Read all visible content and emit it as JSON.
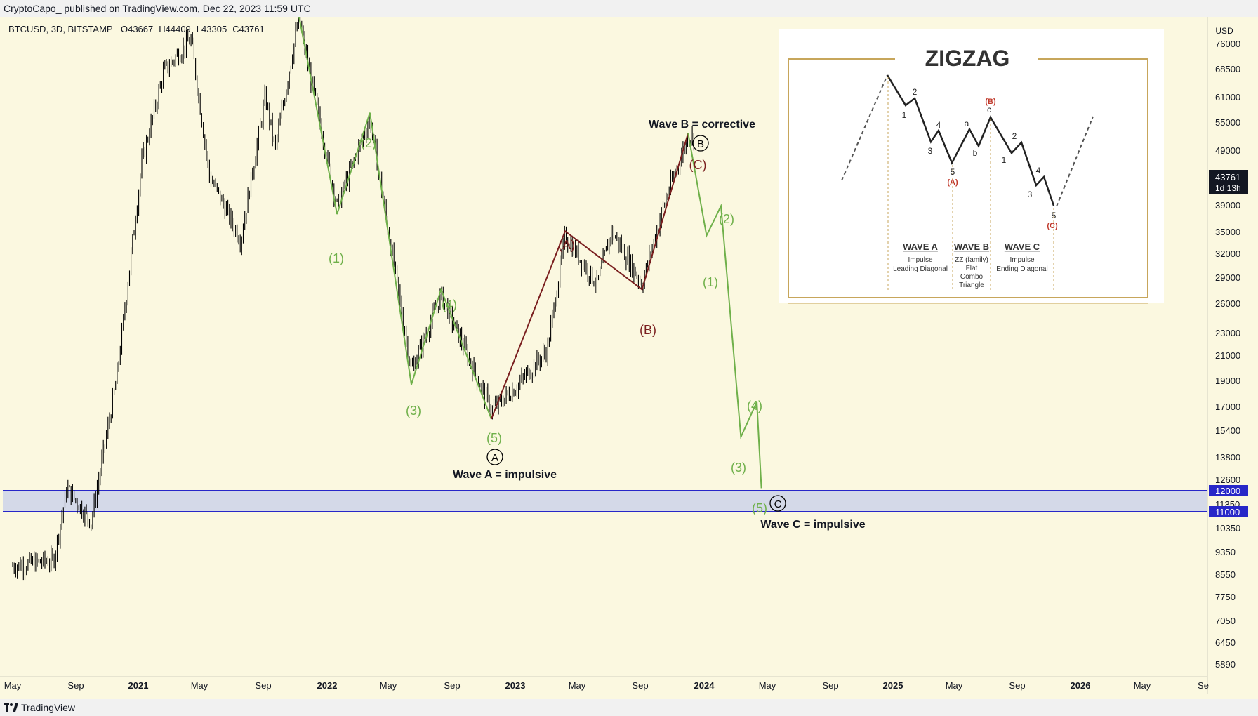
{
  "header": {
    "published_by": "CryptoCapo_ published on TradingView.com, Dec 22, 2023 11:59 UTC"
  },
  "footer": {
    "brand": "TradingView"
  },
  "symbol": {
    "ticker": "BTCUSD",
    "interval": "3D",
    "exchange": "BITSTAMP",
    "open": "O43667",
    "high": "H44409",
    "low": "L43305",
    "close": "C43761"
  },
  "price_axis": {
    "currency": "USD",
    "ticks": [
      "76000",
      "68500",
      "61000",
      "55000",
      "49000",
      "43761",
      "39000",
      "35000",
      "32000",
      "29000",
      "26000",
      "23000",
      "21000",
      "19000",
      "17000",
      "15400",
      "13800",
      "12600",
      "12000",
      "11350",
      "11000",
      "10350",
      "9350",
      "8550",
      "7750",
      "7050",
      "6450",
      "5890"
    ],
    "last_price": "43761",
    "countdown": "1d 13h",
    "zone_upper": "12000",
    "zone_lower": "11000"
  },
  "time_axis": {
    "labels": [
      "May",
      "Sep",
      "2021",
      "May",
      "Sep",
      "2022",
      "May",
      "Sep",
      "2023",
      "May",
      "Sep",
      "2024",
      "May",
      "Sep",
      "2025",
      "May",
      "Sep",
      "2026",
      "May",
      "Se"
    ],
    "bold": [
      "2021",
      "2022",
      "2023",
      "2024",
      "2025",
      "2026"
    ]
  },
  "colors": {
    "green_wave": "#6fb04a",
    "red_wave": "#7a1f1f",
    "zone_fill": "#d4d9e8",
    "zone_line": "#2727c8",
    "candle": "#000000"
  },
  "chart_data": {
    "type": "line",
    "title": "BTCUSD, 3D, BITSTAMP",
    "scale": "log",
    "ylim": [
      5890,
      76000
    ],
    "series": [
      {
        "values_desc": "Wave A green (impulse down)",
        "points": [
          [
            "2021-11-10",
            69000
          ],
          [
            "2022-01-24",
            33000
          ],
          [
            "2022-03-29",
            48000
          ],
          [
            "2022-06-18",
            17600
          ],
          [
            "2022-08-15",
            25000
          ],
          [
            "2022-11-21",
            15500
          ]
        ]
      },
      {
        "values_desc": "Wave B red (corrective up)",
        "points": [
          [
            "2022-11-21",
            15500
          ],
          [
            "2023-04-14",
            31000
          ],
          [
            "2023-09-11",
            25000
          ],
          [
            "2023-12-10",
            44500
          ]
        ]
      },
      {
        "values_desc": "Wave C green projection",
        "points": [
          [
            "2023-12-10",
            44500
          ],
          [
            "2024-01-15",
            30500
          ],
          [
            "2024-02-12",
            34000
          ],
          [
            "2024-03-22",
            14500
          ],
          [
            "2024-04-22",
            16500
          ],
          [
            "2024-05-01",
            12000
          ]
        ]
      }
    ],
    "zone": {
      "from": 11000,
      "to": 12000
    },
    "annotations": [
      {
        "text": "(1)",
        "color": "green"
      },
      {
        "text": "(2)",
        "color": "green"
      },
      {
        "text": "(3)",
        "color": "green"
      },
      {
        "text": "(4)",
        "color": "green"
      },
      {
        "text": "(5)",
        "color": "green"
      },
      {
        "text": "(A)",
        "color": "red"
      },
      {
        "text": "(B)",
        "color": "red"
      },
      {
        "text": "(C)",
        "color": "red"
      },
      {
        "text": "(1)",
        "color": "green"
      },
      {
        "text": "(2)",
        "color": "green"
      },
      {
        "text": "(3)",
        "color": "green"
      },
      {
        "text": "(4)",
        "color": "green"
      },
      {
        "text": "(5)",
        "color": "green"
      },
      {
        "text": "A",
        "style": "circled"
      },
      {
        "text": "B",
        "style": "circled"
      },
      {
        "text": "C",
        "style": "circled"
      },
      {
        "text": "Wave A = impulsive"
      },
      {
        "text": "Wave B = corrective"
      },
      {
        "text": "Wave C = impulsive"
      }
    ]
  },
  "inset": {
    "title": "ZIGZAG",
    "wave_a": {
      "title": "WAVE A",
      "lines": [
        "Impulse",
        "Leading Diagonal"
      ]
    },
    "wave_b": {
      "title": "WAVE B",
      "lines": [
        "ZZ (family)",
        "Flat",
        "Combo",
        "Triangle"
      ]
    },
    "wave_c": {
      "title": "WAVE C",
      "lines": [
        "Impulse",
        "Ending Diagonal"
      ]
    },
    "labels": {
      "n1": "1",
      "n2": "2",
      "n3": "3",
      "n4": "4",
      "n5": "5",
      "a": "a",
      "b": "b",
      "c": "c",
      "A": "(A)",
      "B": "(B)",
      "C": "(C)"
    }
  }
}
